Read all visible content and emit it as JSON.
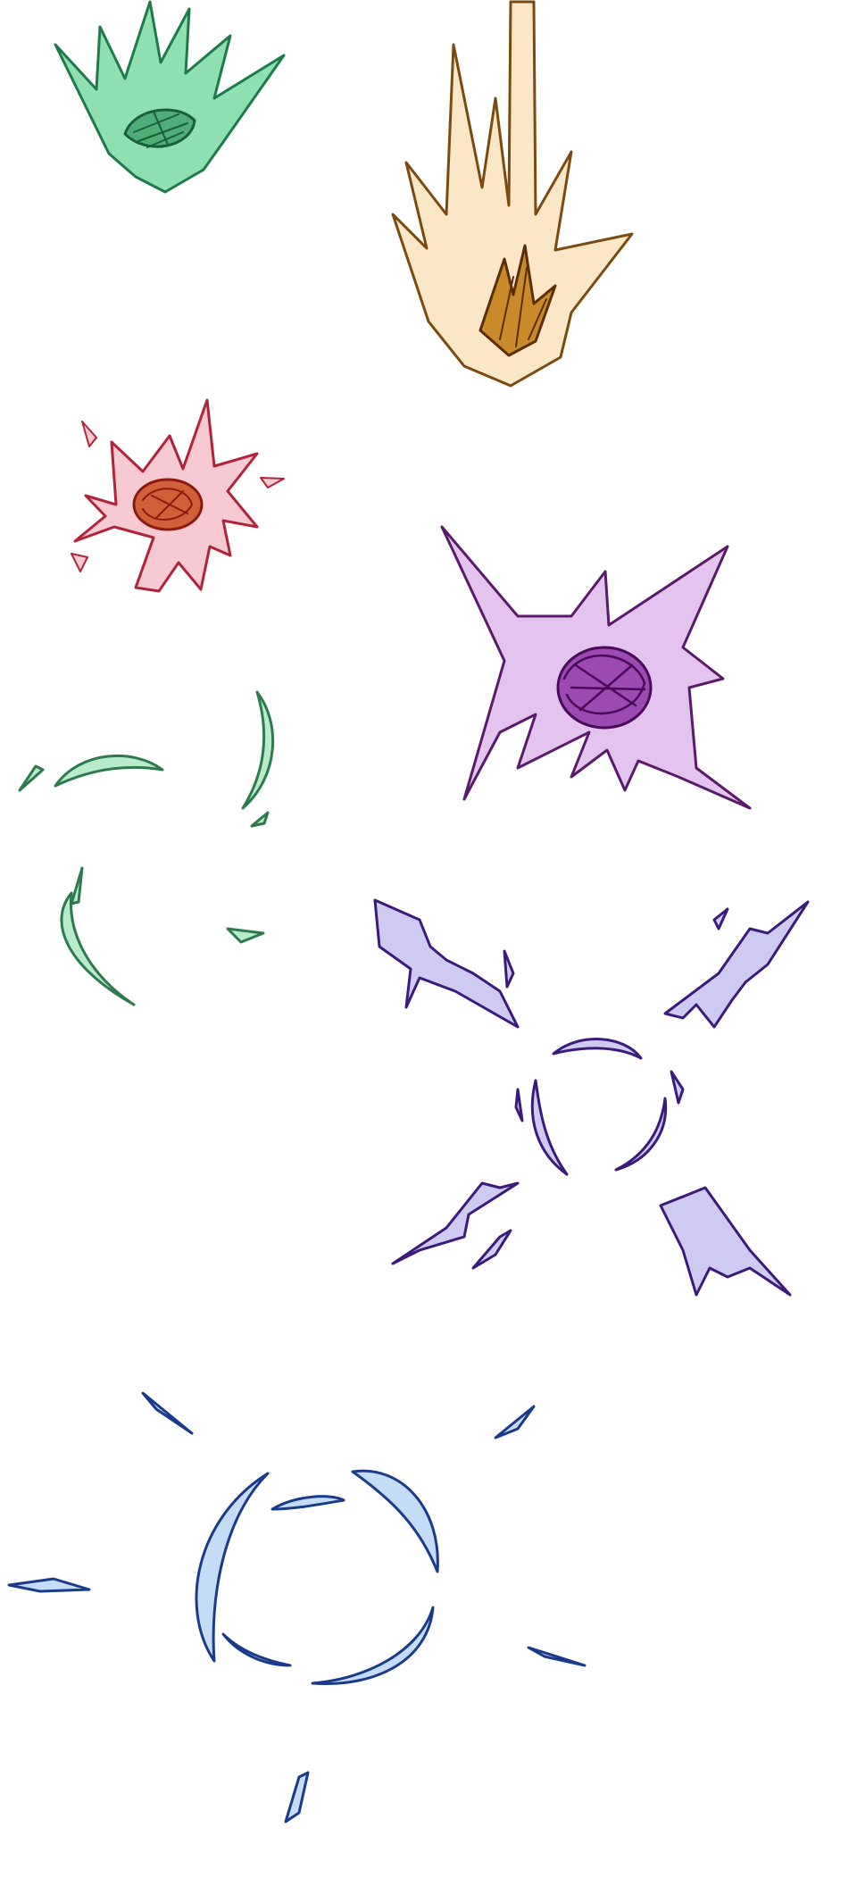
{
  "canvas": {
    "background": "#ffffff"
  },
  "effects": [
    {
      "id": "green-comet",
      "kind": "comet",
      "fill": "#8fe0b0",
      "stroke": "#1f7a4a",
      "core": "#1a5e3a"
    },
    {
      "id": "orange-comet",
      "kind": "comet",
      "fill": "#fbe6c8",
      "stroke": "#7a4a10",
      "core": "#5a2e08"
    },
    {
      "id": "red-burst",
      "kind": "burst",
      "fill": "#f7c9d2",
      "stroke": "#b0243a",
      "core": "#8a1a10"
    },
    {
      "id": "purple-burst",
      "kind": "burst",
      "fill": "#e3c4ee",
      "stroke": "#5a1a6a",
      "core": "#4a0a5a"
    },
    {
      "id": "green-ring",
      "kind": "ring",
      "fill": "#b8ebc9",
      "stroke": "#2e7a4e"
    },
    {
      "id": "violet-ring-sparks",
      "kind": "ring",
      "fill": "#cfcaf2",
      "stroke": "#3a1a7a"
    },
    {
      "id": "blue-shockwave",
      "kind": "ring",
      "fill": "#c4dcf6",
      "stroke": "#1a3a8a"
    }
  ]
}
